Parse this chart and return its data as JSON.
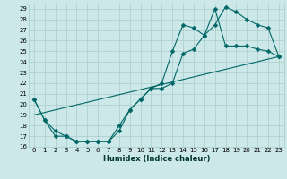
{
  "xlabel": "Humidex (Indice chaleur)",
  "background_color": "#cce8e8",
  "grid_color": "#aacccc",
  "line_color": "#006666",
  "xlim": [
    -0.5,
    23.5
  ],
  "ylim": [
    16,
    29.5
  ],
  "xticks": [
    0,
    1,
    2,
    3,
    4,
    5,
    6,
    7,
    8,
    9,
    10,
    11,
    12,
    13,
    14,
    15,
    16,
    17,
    18,
    19,
    20,
    21,
    22,
    23
  ],
  "yticks": [
    16,
    17,
    18,
    19,
    20,
    21,
    22,
    23,
    24,
    25,
    26,
    27,
    28,
    29
  ],
  "line1_x": [
    0,
    1,
    2,
    3,
    4,
    5,
    6,
    7,
    8,
    9,
    10,
    11,
    12,
    13,
    14,
    15,
    16,
    17,
    18,
    19,
    20,
    21,
    22,
    23
  ],
  "line1_y": [
    20.5,
    18.5,
    17.5,
    17.0,
    16.5,
    16.5,
    16.5,
    16.5,
    17.5,
    19.5,
    20.5,
    21.5,
    21.5,
    22.0,
    24.8,
    25.2,
    26.5,
    27.5,
    29.2,
    28.7,
    28.0,
    27.5,
    27.2,
    24.5
  ],
  "line2_x": [
    0,
    1,
    2,
    3,
    4,
    5,
    6,
    7,
    8,
    9,
    10,
    11,
    12,
    13,
    14,
    15,
    16,
    17,
    18,
    19,
    20,
    21,
    22,
    23
  ],
  "line2_y": [
    20.5,
    18.5,
    17.0,
    17.0,
    16.5,
    16.5,
    16.5,
    16.5,
    18.0,
    19.5,
    20.5,
    21.5,
    22.0,
    25.0,
    27.5,
    27.2,
    26.5,
    29.0,
    25.5,
    25.5,
    25.5,
    25.2,
    25.0,
    24.5
  ],
  "line3_x": [
    0,
    23
  ],
  "line3_y": [
    19.0,
    24.5
  ],
  "marker_size": 2.5,
  "line_width": 0.8,
  "xlabel_fontsize": 6,
  "tick_fontsize": 5
}
